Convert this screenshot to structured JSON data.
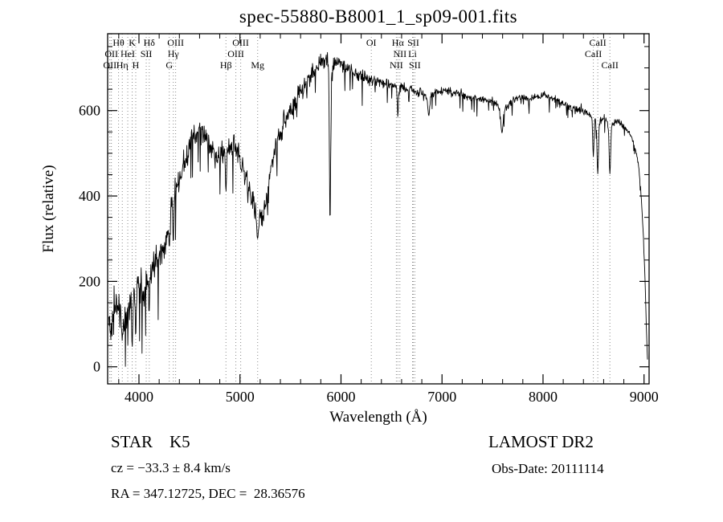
{
  "title": "spec-55880-B8001_1_sp09-001.fits",
  "footer": {
    "classification": "STAR    K5",
    "survey": "LAMOST DR2",
    "cz": "cz = −33.3 ± 8.4 km/s",
    "obs_date": "Obs-Date: 20111114",
    "coords": "RA = 347.12725, DEC =  28.36576"
  },
  "chart_data": {
    "type": "line",
    "title": "spec-55880-B8001_1_sp09-001.fits",
    "xlabel": "Wavelength (Å)",
    "ylabel": "Flux (relative)",
    "xlim": [
      3690,
      9050
    ],
    "ylim": [
      -40,
      780
    ],
    "xticks": [
      4000,
      5000,
      6000,
      7000,
      8000,
      9000
    ],
    "yticks": [
      0,
      200,
      400,
      600
    ],
    "x_minor_step": 200,
    "y_minor_step": 50,
    "grid": false,
    "legend": "none",
    "line_color": "#000000",
    "marker_line_color": "#8a8a8a",
    "background": "#ffffff",
    "spectral_lines": [
      {
        "label": "Hθ",
        "wavelength": 3798,
        "row": 0
      },
      {
        "label": "K",
        "wavelength": 3933,
        "row": 0
      },
      {
        "label": "Hδ",
        "wavelength": 4102,
        "row": 0
      },
      {
        "label": "OIII",
        "wavelength": 4363,
        "row": 0
      },
      {
        "label": "OIII",
        "wavelength": 5007,
        "row": 0
      },
      {
        "label": "OI",
        "wavelength": 6300,
        "row": 0
      },
      {
        "label": "Hα",
        "wavelength": 6563,
        "row": 0
      },
      {
        "label": "SII",
        "wavelength": 6716,
        "row": 0
      },
      {
        "label": "CaII",
        "wavelength": 8542,
        "row": 0
      },
      {
        "label": "OII",
        "wavelength": 3727,
        "row": 1
      },
      {
        "label": "HeI",
        "wavelength": 3889,
        "row": 1
      },
      {
        "label": "SII",
        "wavelength": 4072,
        "row": 1
      },
      {
        "label": "Hγ",
        "wavelength": 4340,
        "row": 1
      },
      {
        "label": "OIII",
        "wavelength": 4959,
        "row": 1
      },
      {
        "label": "NII",
        "wavelength": 6583,
        "row": 1
      },
      {
        "label": "Li",
        "wavelength": 6708,
        "row": 1
      },
      {
        "label": "CaII",
        "wavelength": 8498,
        "row": 1
      },
      {
        "label": "OII",
        "wavelength": 3712,
        "row": 2
      },
      {
        "label": "Hη",
        "wavelength": 3835,
        "row": 2
      },
      {
        "label": "H",
        "wavelength": 3968,
        "row": 2
      },
      {
        "label": "G",
        "wavelength": 4300,
        "row": 2
      },
      {
        "label": "Hβ",
        "wavelength": 4861,
        "row": 2
      },
      {
        "label": "Mg",
        "wavelength": 5175,
        "row": 2
      },
      {
        "label": "NII",
        "wavelength": 6548,
        "row": 2
      },
      {
        "label": "SII",
        "wavelength": 6731,
        "row": 2
      },
      {
        "label": "CaII",
        "wavelength": 8662,
        "row": 2
      }
    ],
    "envelope": [
      [
        3698,
        120
      ],
      [
        3720,
        80
      ],
      [
        3740,
        95
      ],
      [
        3760,
        130
      ],
      [
        3780,
        145
      ],
      [
        3800,
        140
      ],
      [
        3830,
        120
      ],
      [
        3860,
        115
      ],
      [
        3890,
        135
      ],
      [
        3920,
        150
      ],
      [
        3950,
        170
      ],
      [
        3980,
        190
      ],
      [
        4010,
        195
      ],
      [
        4040,
        180
      ],
      [
        4070,
        190
      ],
      [
        4100,
        205
      ],
      [
        4140,
        235
      ],
      [
        4180,
        255
      ],
      [
        4220,
        270
      ],
      [
        4260,
        290
      ],
      [
        4300,
        330
      ],
      [
        4340,
        390
      ],
      [
        4380,
        420
      ],
      [
        4420,
        450
      ],
      [
        4460,
        490
      ],
      [
        4500,
        520
      ],
      [
        4540,
        540
      ],
      [
        4580,
        555
      ],
      [
        4620,
        550
      ],
      [
        4660,
        535
      ],
      [
        4700,
        515
      ],
      [
        4740,
        495
      ],
      [
        4780,
        495
      ],
      [
        4820,
        505
      ],
      [
        4860,
        500
      ],
      [
        4900,
        520
      ],
      [
        4940,
        515
      ],
      [
        4980,
        500
      ],
      [
        5020,
        470
      ],
      [
        5060,
        445
      ],
      [
        5100,
        415
      ],
      [
        5140,
        380
      ],
      [
        5180,
        350
      ],
      [
        5220,
        345
      ],
      [
        5260,
        390
      ],
      [
        5300,
        455
      ],
      [
        5340,
        505
      ],
      [
        5380,
        535
      ],
      [
        5420,
        560
      ],
      [
        5460,
        580
      ],
      [
        5500,
        600
      ],
      [
        5540,
        620
      ],
      [
        5580,
        638
      ],
      [
        5620,
        652
      ],
      [
        5660,
        668
      ],
      [
        5700,
        682
      ],
      [
        5740,
        695
      ],
      [
        5780,
        706
      ],
      [
        5820,
        714
      ],
      [
        5860,
        720
      ],
      [
        5900,
        710
      ],
      [
        5940,
        712
      ],
      [
        5980,
        712
      ],
      [
        6020,
        705
      ],
      [
        6060,
        698
      ],
      [
        6100,
        692
      ],
      [
        6140,
        688
      ],
      [
        6180,
        684
      ],
      [
        6220,
        680
      ],
      [
        6260,
        674
      ],
      [
        6300,
        670
      ],
      [
        6340,
        668
      ],
      [
        6380,
        666
      ],
      [
        6420,
        664
      ],
      [
        6460,
        662
      ],
      [
        6500,
        659
      ],
      [
        6540,
        654
      ],
      [
        6580,
        652
      ],
      [
        6620,
        654
      ],
      [
        6660,
        651
      ],
      [
        6700,
        649
      ],
      [
        6740,
        646
      ],
      [
        6780,
        643
      ],
      [
        6820,
        638
      ],
      [
        6860,
        632
      ],
      [
        6900,
        636
      ],
      [
        6940,
        642
      ],
      [
        6980,
        646
      ],
      [
        7020,
        647
      ],
      [
        7060,
        645
      ],
      [
        7100,
        643
      ],
      [
        7160,
        639
      ],
      [
        7220,
        635
      ],
      [
        7280,
        631
      ],
      [
        7340,
        628
      ],
      [
        7400,
        626
      ],
      [
        7460,
        623
      ],
      [
        7520,
        618
      ],
      [
        7580,
        606
      ],
      [
        7640,
        608
      ],
      [
        7700,
        622
      ],
      [
        7760,
        629
      ],
      [
        7820,
        631
      ],
      [
        7880,
        629
      ],
      [
        7940,
        631
      ],
      [
        8000,
        637
      ],
      [
        8060,
        632
      ],
      [
        8120,
        626
      ],
      [
        8180,
        619
      ],
      [
        8240,
        612
      ],
      [
        8300,
        606
      ],
      [
        8360,
        601
      ],
      [
        8420,
        597
      ],
      [
        8480,
        588
      ],
      [
        8540,
        572
      ],
      [
        8600,
        585
      ],
      [
        8660,
        562
      ],
      [
        8720,
        577
      ],
      [
        8780,
        568
      ],
      [
        8840,
        553
      ],
      [
        8880,
        535
      ],
      [
        8910,
        515
      ],
      [
        8940,
        480
      ],
      [
        8960,
        440
      ],
      [
        8980,
        370
      ],
      [
        9000,
        270
      ],
      [
        9012,
        185
      ],
      [
        9022,
        100
      ],
      [
        9030,
        40
      ],
      [
        9036,
        10
      ]
    ],
    "noise_profile": [
      [
        3700,
        50
      ],
      [
        4300,
        45
      ],
      [
        4700,
        35
      ],
      [
        5200,
        32
      ],
      [
        5600,
        28
      ],
      [
        6000,
        22
      ],
      [
        6400,
        16
      ],
      [
        6800,
        13
      ],
      [
        7400,
        11
      ],
      [
        8000,
        10
      ],
      [
        8600,
        11
      ],
      [
        9036,
        6
      ]
    ],
    "absorption_dips": [
      {
        "x": 3835,
        "to": 60,
        "hw": 4
      },
      {
        "x": 3933,
        "to": 45,
        "hw": 5
      },
      {
        "x": 3968,
        "to": 70,
        "hw": 5
      },
      {
        "x": 4101,
        "to": 130,
        "hw": 5
      },
      {
        "x": 4300,
        "to": 280,
        "hw": 6
      },
      {
        "x": 4340,
        "to": 290,
        "hw": 5
      },
      {
        "x": 4861,
        "to": 410,
        "hw": 5
      },
      {
        "x": 5175,
        "to": 300,
        "hw": 9
      },
      {
        "x": 5892,
        "to": 335,
        "hw": 6
      },
      {
        "x": 6563,
        "to": 585,
        "hw": 5
      },
      {
        "x": 6869,
        "to": 588,
        "hw": 9
      },
      {
        "x": 7594,
        "to": 548,
        "hw": 11
      },
      {
        "x": 8498,
        "to": 492,
        "hw": 6
      },
      {
        "x": 8542,
        "to": 452,
        "hw": 7
      },
      {
        "x": 8662,
        "to": 452,
        "hw": 7
      }
    ]
  }
}
